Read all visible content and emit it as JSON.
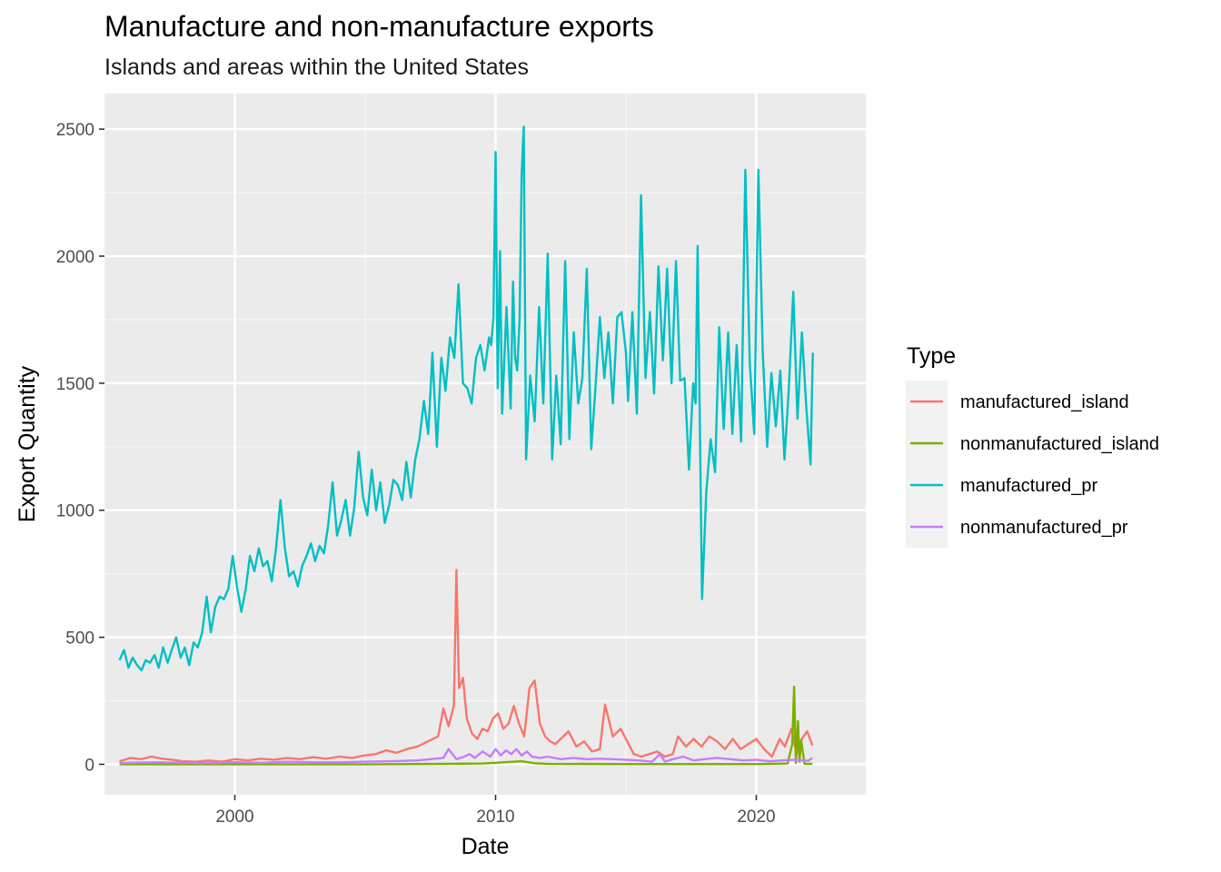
{
  "chart_data": {
    "type": "line",
    "title": "Manufacture and non-manufacture exports",
    "subtitle": "Islands and areas within the United States",
    "xlabel": "Date",
    "ylabel": "Export Quantity",
    "xlim": [
      1995.0,
      2024.2
    ],
    "ylim": [
      -120,
      2640
    ],
    "x_ticks": [
      2000,
      2010,
      2020
    ],
    "x_tick_labels": [
      "2000",
      "2010",
      "2020"
    ],
    "y_ticks": [
      0,
      500,
      1000,
      1500,
      2000,
      2500
    ],
    "y_tick_labels": [
      "0",
      "500",
      "1000",
      "1500",
      "2000",
      "2500"
    ],
    "grid": true,
    "legend": {
      "title": "Type",
      "position": "right"
    },
    "series": [
      {
        "name": "manufactured_island",
        "color": "#F8766D",
        "x": [
          1995.58,
          1996.0,
          1996.4,
          1996.8,
          1997.2,
          1997.6,
          1998.0,
          1998.5,
          1999.0,
          1999.5,
          2000.0,
          2000.5,
          2001.0,
          2001.5,
          2002.0,
          2002.5,
          2003.0,
          2003.5,
          2004.0,
          2004.5,
          2005.0,
          2005.4,
          2005.8,
          2006.2,
          2006.6,
          2007.0,
          2007.4,
          2007.8,
          2008.0,
          2008.2,
          2008.4,
          2008.5,
          2008.6,
          2008.75,
          2008.9,
          2009.1,
          2009.3,
          2009.5,
          2009.7,
          2009.9,
          2010.1,
          2010.3,
          2010.5,
          2010.7,
          2010.9,
          2011.1,
          2011.3,
          2011.5,
          2011.7,
          2011.9,
          2012.1,
          2012.3,
          2012.5,
          2012.8,
          2013.1,
          2013.4,
          2013.7,
          2014.0,
          2014.2,
          2014.5,
          2014.8,
          2015.0,
          2015.3,
          2015.6,
          2015.9,
          2016.2,
          2016.5,
          2016.8,
          2017.0,
          2017.3,
          2017.6,
          2017.9,
          2018.2,
          2018.5,
          2018.8,
          2019.1,
          2019.4,
          2019.7,
          2020.0,
          2020.3,
          2020.6,
          2020.9,
          2021.1,
          2021.35,
          2021.55,
          2021.75,
          2021.95,
          2022.15
        ],
        "values": [
          12,
          25,
          20,
          30,
          22,
          18,
          12,
          10,
          15,
          10,
          20,
          15,
          22,
          18,
          25,
          20,
          28,
          22,
          30,
          25,
          35,
          40,
          55,
          45,
          60,
          70,
          90,
          110,
          220,
          150,
          230,
          765,
          300,
          340,
          180,
          120,
          100,
          140,
          130,
          180,
          200,
          140,
          160,
          230,
          160,
          110,
          300,
          330,
          160,
          110,
          90,
          80,
          100,
          130,
          70,
          90,
          50,
          60,
          235,
          110,
          140,
          100,
          40,
          30,
          40,
          50,
          30,
          40,
          110,
          70,
          100,
          70,
          110,
          90,
          60,
          100,
          60,
          80,
          100,
          60,
          30,
          100,
          70,
          140,
          40,
          100,
          130,
          75
        ]
      },
      {
        "name": "nonmanufactured_island",
        "color": "#7CAE00",
        "x": [
          1995.58,
          2000.0,
          2005.0,
          2008.0,
          2009.5,
          2010.0,
          2011.0,
          2011.5,
          2012.0,
          2015.0,
          2018.0,
          2020.0,
          2021.2,
          2021.38,
          2021.45,
          2021.52,
          2021.6,
          2021.66,
          2021.72,
          2021.85,
          2022.15
        ],
        "values": [
          0,
          0,
          0,
          2,
          3,
          6,
          12,
          4,
          2,
          1,
          1,
          1,
          3,
          80,
          305,
          5,
          170,
          10,
          95,
          2,
          2
        ]
      },
      {
        "name": "manufactured_pr",
        "color": "#00BFC4",
        "x": [
          1995.58,
          1995.75,
          1995.92,
          1996.08,
          1996.25,
          1996.42,
          1996.58,
          1996.75,
          1996.92,
          1997.08,
          1997.25,
          1997.42,
          1997.58,
          1997.75,
          1997.92,
          1998.08,
          1998.25,
          1998.42,
          1998.58,
          1998.75,
          1998.92,
          1999.08,
          1999.25,
          1999.42,
          1999.58,
          1999.75,
          1999.92,
          2000.08,
          2000.25,
          2000.42,
          2000.58,
          2000.75,
          2000.92,
          2001.08,
          2001.25,
          2001.42,
          2001.58,
          2001.75,
          2001.92,
          2002.08,
          2002.25,
          2002.42,
          2002.58,
          2002.75,
          2002.92,
          2003.08,
          2003.25,
          2003.42,
          2003.58,
          2003.75,
          2003.92,
          2004.08,
          2004.25,
          2004.42,
          2004.58,
          2004.75,
          2004.92,
          2005.08,
          2005.25,
          2005.42,
          2005.58,
          2005.75,
          2005.92,
          2006.08,
          2006.25,
          2006.42,
          2006.58,
          2006.75,
          2006.92,
          2007.08,
          2007.25,
          2007.42,
          2007.58,
          2007.75,
          2007.92,
          2008.08,
          2008.25,
          2008.42,
          2008.58,
          2008.75,
          2008.92,
          2009.08,
          2009.25,
          2009.42,
          2009.58,
          2009.75,
          2009.83,
          2009.92,
          2010.0,
          2010.08,
          2010.17,
          2010.25,
          2010.42,
          2010.58,
          2010.67,
          2010.75,
          2010.83,
          2010.92,
          2011.0,
          2011.08,
          2011.17,
          2011.33,
          2011.5,
          2011.67,
          2011.83,
          2012.0,
          2012.17,
          2012.33,
          2012.5,
          2012.67,
          2012.83,
          2013.0,
          2013.17,
          2013.33,
          2013.5,
          2013.67,
          2013.83,
          2014.0,
          2014.17,
          2014.33,
          2014.5,
          2014.67,
          2014.83,
          2015.0,
          2015.08,
          2015.25,
          2015.42,
          2015.58,
          2015.75,
          2015.92,
          2016.08,
          2016.25,
          2016.42,
          2016.58,
          2016.75,
          2016.92,
          2017.08,
          2017.25,
          2017.42,
          2017.58,
          2017.67,
          2017.75,
          2017.92,
          2018.08,
          2018.25,
          2018.42,
          2018.58,
          2018.75,
          2018.92,
          2019.08,
          2019.25,
          2019.42,
          2019.58,
          2019.75,
          2019.92,
          2020.08,
          2020.25,
          2020.42,
          2020.58,
          2020.75,
          2020.92,
          2021.08,
          2021.25,
          2021.42,
          2021.58,
          2021.75,
          2021.92,
          2022.08,
          2022.17
        ],
        "values": [
          410,
          450,
          380,
          420,
          390,
          370,
          410,
          400,
          430,
          380,
          460,
          400,
          450,
          500,
          420,
          460,
          390,
          480,
          460,
          520,
          660,
          520,
          620,
          660,
          650,
          690,
          820,
          700,
          600,
          690,
          820,
          760,
          850,
          780,
          800,
          720,
          850,
          1040,
          850,
          740,
          760,
          700,
          780,
          820,
          870,
          800,
          860,
          830,
          940,
          1110,
          900,
          960,
          1040,
          900,
          1010,
          1230,
          1050,
          980,
          1160,
          1000,
          1110,
          950,
          1020,
          1120,
          1100,
          1040,
          1190,
          1050,
          1200,
          1280,
          1430,
          1300,
          1620,
          1250,
          1600,
          1470,
          1680,
          1600,
          1890,
          1500,
          1480,
          1420,
          1600,
          1650,
          1550,
          1680,
          1650,
          1760,
          2410,
          1480,
          2020,
          1380,
          1800,
          1400,
          1900,
          1600,
          1550,
          1750,
          2320,
          2510,
          1200,
          1530,
          1350,
          1800,
          1420,
          2010,
          1200,
          1530,
          1260,
          1980,
          1280,
          1700,
          1420,
          1520,
          1950,
          1240,
          1480,
          1760,
          1520,
          1700,
          1420,
          1760,
          1780,
          1620,
          1430,
          1780,
          1380,
          2240,
          1520,
          1780,
          1460,
          1960,
          1590,
          1950,
          1500,
          1980,
          1510,
          1520,
          1160,
          1500,
          1420,
          2040,
          650,
          1070,
          1280,
          1150,
          1720,
          1320,
          1700,
          1300,
          1650,
          1270,
          2340,
          1580,
          1300,
          2340,
          1620,
          1250,
          1540,
          1330,
          1550,
          1200,
          1480,
          1860,
          1360,
          1700,
          1400,
          1180,
          1620
        ]
      },
      {
        "name": "nonmanufactured_pr",
        "color": "#C77CFF",
        "x": [
          1995.58,
          1997.0,
          1998.0,
          1999.0,
          2000.0,
          2001.0,
          2002.0,
          2003.0,
          2004.0,
          2005.0,
          2006.0,
          2007.0,
          2007.5,
          2008.0,
          2008.2,
          2008.5,
          2008.8,
          2009.0,
          2009.2,
          2009.5,
          2009.8,
          2010.0,
          2010.2,
          2010.4,
          2010.6,
          2010.8,
          2011.0,
          2011.2,
          2011.4,
          2011.7,
          2012.0,
          2012.5,
          2013.0,
          2013.5,
          2014.0,
          2014.5,
          2015.0,
          2015.5,
          2016.0,
          2016.3,
          2016.5,
          2016.8,
          2017.2,
          2017.6,
          2018.0,
          2018.5,
          2019.0,
          2019.5,
          2020.0,
          2020.5,
          2021.0,
          2021.5,
          2022.0,
          2022.15
        ],
        "values": [
          5,
          8,
          6,
          5,
          8,
          6,
          10,
          8,
          8,
          10,
          12,
          15,
          20,
          25,
          60,
          20,
          30,
          40,
          25,
          50,
          30,
          60,
          35,
          55,
          40,
          60,
          35,
          50,
          30,
          25,
          30,
          20,
          25,
          20,
          22,
          20,
          18,
          15,
          10,
          40,
          10,
          20,
          30,
          15,
          20,
          25,
          20,
          15,
          18,
          12,
          15,
          18,
          14,
          25
        ]
      }
    ]
  }
}
